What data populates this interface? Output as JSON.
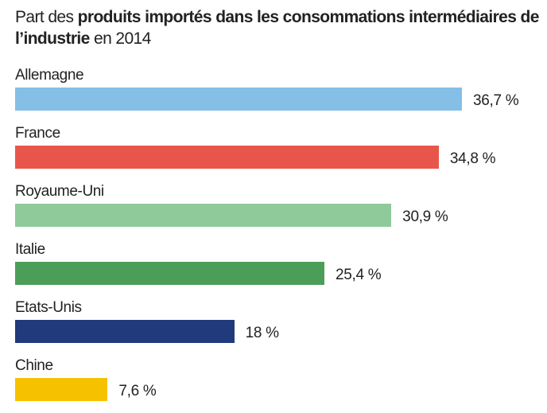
{
  "chart_data": {
    "type": "bar",
    "orientation": "horizontal",
    "title_parts": [
      {
        "text": "Part des ",
        "bold": false
      },
      {
        "text": "produits importés dans les consommations intermédiaires de l’industrie",
        "bold": true
      },
      {
        "text": " en 2014",
        "bold": false
      }
    ],
    "categories": [
      "Allemagne",
      "France",
      "Royaume-Uni",
      "Italie",
      "Etats-Unis",
      "Chine"
    ],
    "values": [
      36.7,
      34.8,
      30.9,
      25.4,
      18,
      7.6
    ],
    "value_labels": [
      "36,7 %",
      "34,8 %",
      "30,9 %",
      "25,4 %",
      "18 %",
      "7,6 %"
    ],
    "colors": [
      "#85bfe6",
      "#e8564b",
      "#8fca9b",
      "#4b9e57",
      "#203a7b",
      "#f6c200"
    ],
    "xlim": [
      0,
      36.7
    ],
    "grid": false,
    "axes_visible": false
  }
}
